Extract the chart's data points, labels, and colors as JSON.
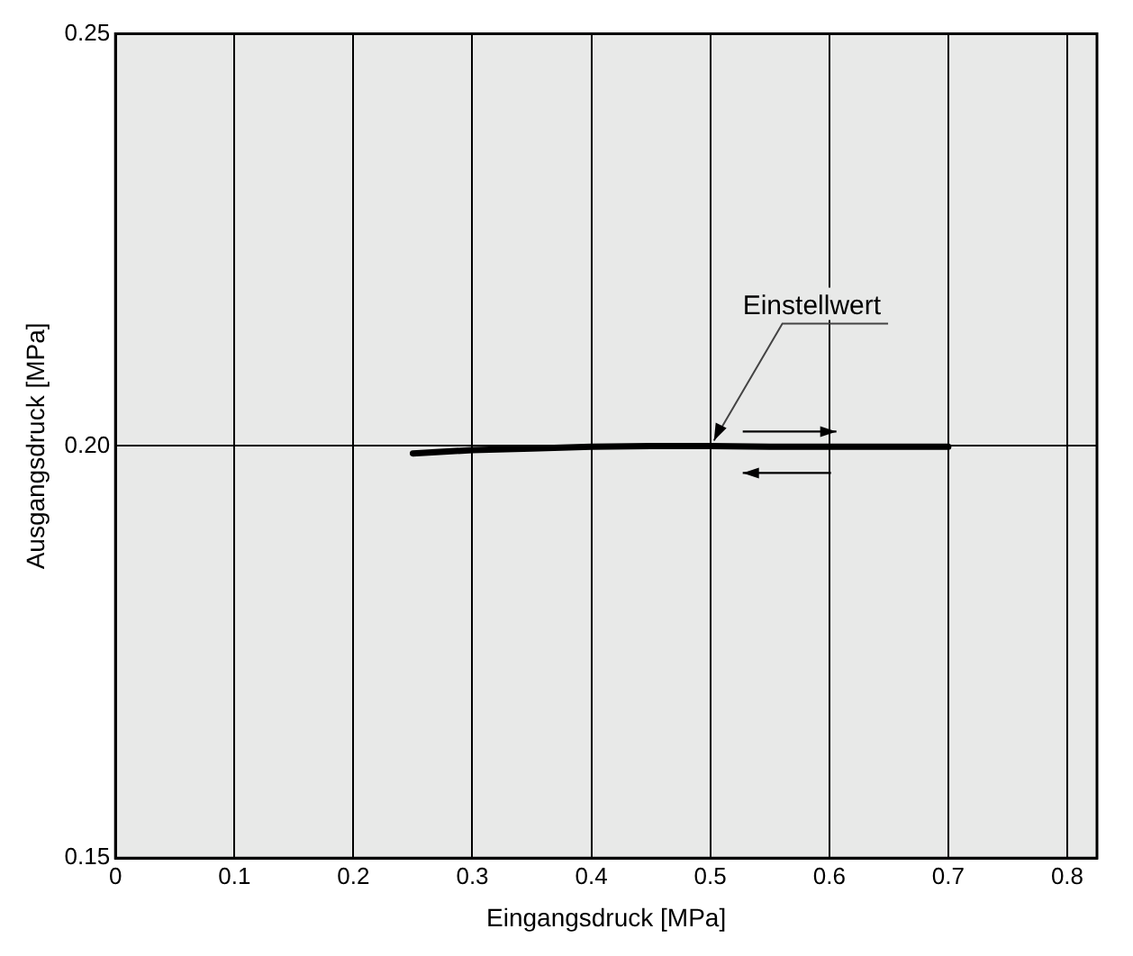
{
  "chart_data": {
    "type": "line",
    "xlabel": "Eingangsdruck [MPa]",
    "ylabel": "Ausgangsdruck [MPa]",
    "x": [
      0.25,
      0.3,
      0.35,
      0.4,
      0.45,
      0.5,
      0.55,
      0.6,
      0.65,
      0.7
    ],
    "series": [
      {
        "color": "#000000",
        "values": [
          0.1991,
          0.1995,
          0.1997,
          0.1999,
          0.2,
          0.2,
          0.1999,
          0.1999,
          0.1999,
          0.1999
        ]
      }
    ],
    "xlim": [
      0,
      0.825
    ],
    "xticks": [
      0,
      0.1,
      0.2,
      0.3,
      0.4,
      0.5,
      0.6,
      0.7,
      0.8
    ],
    "ylim": [
      0.15,
      0.25
    ],
    "yticks": [
      0.15,
      {
        "value": 0.2,
        "label": "0.20"
      },
      0.25
    ],
    "annotations": [
      {
        "text": "Einstellwert",
        "x": 0.5,
        "y": 0.2
      }
    ],
    "grid": true,
    "marker": "none",
    "line_style": "solid"
  }
}
